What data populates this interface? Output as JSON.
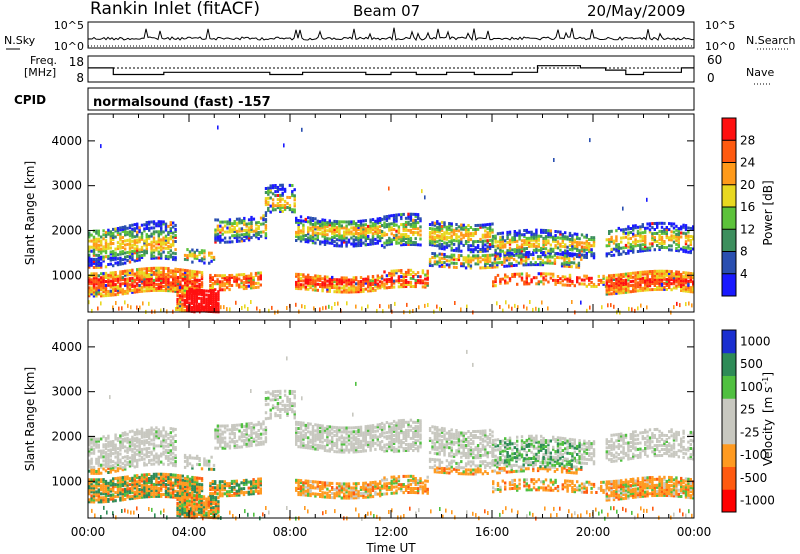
{
  "header": {
    "station": "Rankin Inlet (fitACF)",
    "beam": "Beam 07",
    "date": "20/May/2009"
  },
  "nsky_panel": {
    "left_label": "N.Sky",
    "right_label": "N.Search",
    "ticks_left": [
      "10^5",
      "10^0"
    ],
    "ticks_right": [
      "10^5",
      "10^0"
    ]
  },
  "freq_panel": {
    "left_label_1": "Freq.",
    "left_label_2": "[MHz]",
    "right_label": "Nave",
    "ticks_left": [
      "18",
      "8"
    ],
    "ticks_right": [
      "60",
      "0"
    ]
  },
  "cpid": {
    "label": "CPID",
    "value": "normalsound (fast) -157"
  },
  "colors": {
    "power_scale": [
      "#1a1aff",
      "#2a4fb0",
      "#3d8f5e",
      "#5cc23a",
      "#e8d820",
      "#ff9a1a",
      "#ff5a10",
      "#ff1010"
    ],
    "velocity_scale": [
      "#ff0000",
      "#ff5a10",
      "#ff9a20",
      "#c8c8c0",
      "#c8c8c0",
      "#50c040",
      "#2e8b57",
      "#1a2fd0"
    ]
  },
  "chart_data": [
    {
      "type": "heatmap",
      "panel": "power",
      "ylabel": "Slant Range [km]",
      "xlabel": "Time UT",
      "x_ticks": [
        "00:00",
        "04:00",
        "08:00",
        "12:00",
        "16:00",
        "20:00",
        "00:00"
      ],
      "y_ticks": [
        1000,
        2000,
        3000,
        4000
      ],
      "ylim": [
        180,
        4600
      ],
      "xlim_hours": [
        0,
        24
      ],
      "colorbar_label": "Power [dB]",
      "colorbar_ticks": [
        4,
        8,
        12,
        16,
        20,
        24,
        28
      ],
      "colorbar_range": [
        0,
        32
      ]
    },
    {
      "type": "heatmap",
      "panel": "velocity",
      "ylabel": "Slant Range [km]",
      "xlabel": "Time UT",
      "x_ticks": [
        "00:00",
        "04:00",
        "08:00",
        "12:00",
        "16:00",
        "20:00",
        "00:00"
      ],
      "y_ticks": [
        1000,
        2000,
        3000,
        4000
      ],
      "ylim": [
        180,
        4600
      ],
      "xlim_hours": [
        0,
        24
      ],
      "colorbar_label": "Velocity",
      "colorbar_unit": "[m s",
      "colorbar_unit_exp": "-1",
      "colorbar_unit_close": "]",
      "colorbar_ticks": [
        -1000,
        -500,
        -100,
        -25,
        25,
        100,
        500,
        1000
      ],
      "colorbar_tick_labels": [
        "-1000",
        "-500",
        "-100",
        "-25",
        "25",
        "100",
        "500",
        "1000"
      ]
    }
  ]
}
